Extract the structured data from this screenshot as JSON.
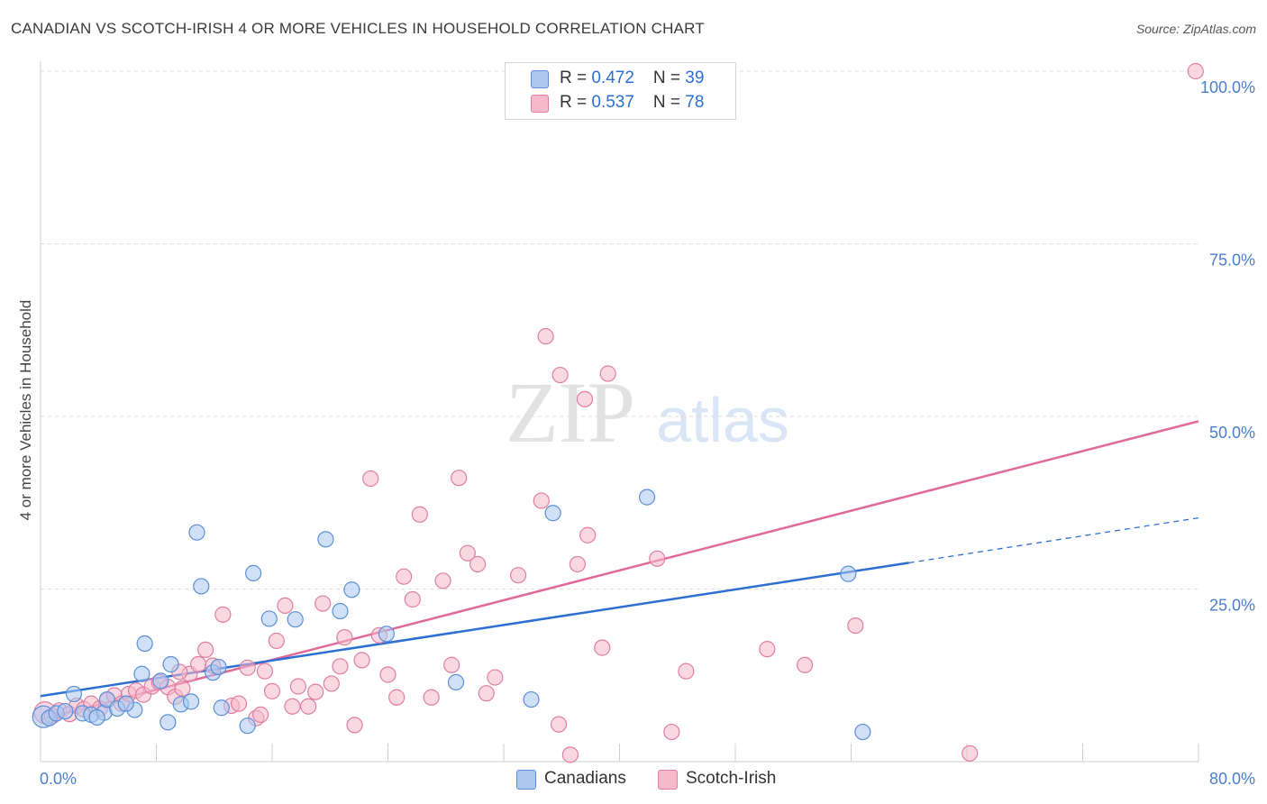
{
  "title": "CANADIAN VS SCOTCH-IRISH 4 OR MORE VEHICLES IN HOUSEHOLD CORRELATION CHART",
  "source": "Source: ZipAtlas.com",
  "watermark": {
    "zip": "ZIP",
    "atlas": "atlas"
  },
  "stats": [
    {
      "r_label": "R = ",
      "r_value": "0.472",
      "n_label": "N = ",
      "n_value": "39",
      "color": "#aac8f0"
    },
    {
      "r_label": "R = ",
      "r_value": "0.537",
      "n_label": "N = ",
      "n_value": "78",
      "color": "#f6b8cb"
    }
  ],
  "legend": [
    {
      "label": "Canadians",
      "color": "#aac8f0"
    },
    {
      "label": "Scotch-Irish",
      "color": "#f6b8cb"
    }
  ],
  "colors": {
    "canadians_fill": "#aac8f0",
    "canadians_stroke": "#5b8fd8",
    "canadians_line": "#2d6fd1",
    "scotch_fill": "#f6b8cb",
    "scotch_stroke": "#e07f9f",
    "scotch_line": "#e0699a",
    "axis_text": "#4a7fcf",
    "grid": "#dddddd"
  },
  "chart_data": {
    "type": "scatter",
    "title": "CANADIAN VS SCOTCH-IRISH 4 OR MORE VEHICLES IN HOUSEHOLD CORRELATION CHART",
    "xlabel": "",
    "ylabel": "4 or more Vehicles in Household",
    "xlim": [
      0,
      80
    ],
    "ylim": [
      0,
      100
    ],
    "x_tick_labels": [
      "0.0%",
      "80.0%"
    ],
    "y_tick_labels": [
      "25.0%",
      "50.0%",
      "75.0%",
      "100.0%"
    ],
    "y_ticks": [
      25,
      50,
      75,
      100
    ],
    "grid": "horizontal dashed",
    "legend_position": "bottom-center",
    "series": [
      {
        "name": "Canadians",
        "r": 0.472,
        "n": 39,
        "trend": {
          "x": [
            0,
            60
          ],
          "y": [
            9.5,
            28.8
          ],
          "dashed_to": [
            80,
            35.3
          ]
        },
        "points": [
          [
            0.2,
            6.5
          ],
          [
            0.6,
            6.3
          ],
          [
            1.1,
            7.0
          ],
          [
            1.7,
            7.3
          ],
          [
            2.3,
            9.8
          ],
          [
            2.9,
            7.0
          ],
          [
            3.5,
            6.8
          ],
          [
            4.4,
            7.1
          ],
          [
            4.6,
            9.0
          ],
          [
            5.3,
            7.7
          ],
          [
            6.5,
            7.5
          ],
          [
            5.9,
            8.4
          ],
          [
            7.0,
            12.7
          ],
          [
            7.2,
            17.1
          ],
          [
            8.3,
            11.7
          ],
          [
            8.8,
            5.7
          ],
          [
            9.0,
            14.1
          ],
          [
            9.7,
            8.3
          ],
          [
            10.4,
            8.7
          ],
          [
            10.8,
            33.2
          ],
          [
            11.1,
            25.4
          ],
          [
            11.9,
            12.9
          ],
          [
            12.3,
            13.7
          ],
          [
            14.3,
            5.2
          ],
          [
            14.7,
            27.3
          ],
          [
            15.8,
            20.7
          ],
          [
            17.6,
            20.6
          ],
          [
            19.7,
            32.2
          ],
          [
            20.7,
            21.8
          ],
          [
            21.5,
            24.9
          ],
          [
            23.9,
            18.5
          ],
          [
            28.7,
            11.5
          ],
          [
            33.9,
            9.0
          ],
          [
            35.4,
            36.0
          ],
          [
            41.9,
            38.3
          ],
          [
            55.8,
            27.2
          ],
          [
            56.8,
            4.3
          ],
          [
            3.9,
            6.4
          ],
          [
            12.5,
            7.8
          ]
        ]
      },
      {
        "name": "Scotch-Irish",
        "r": 0.537,
        "n": 78,
        "trend": {
          "x": [
            0,
            80
          ],
          "y": [
            6.1,
            49.3
          ]
        },
        "points": [
          [
            0.3,
            7.1
          ],
          [
            0.8,
            6.6
          ],
          [
            1.3,
            7.4
          ],
          [
            2.0,
            6.9
          ],
          [
            2.5,
            8.1
          ],
          [
            3.0,
            7.6
          ],
          [
            3.5,
            8.4
          ],
          [
            4.1,
            7.7
          ],
          [
            4.6,
            8.9
          ],
          [
            5.1,
            9.6
          ],
          [
            5.6,
            8.4
          ],
          [
            6.1,
            9.8
          ],
          [
            6.6,
            10.3
          ],
          [
            7.1,
            9.7
          ],
          [
            7.7,
            10.9
          ],
          [
            8.2,
            11.5
          ],
          [
            8.8,
            10.8
          ],
          [
            9.3,
            9.4
          ],
          [
            9.8,
            10.6
          ],
          [
            10.3,
            12.7
          ],
          [
            10.9,
            14.1
          ],
          [
            11.4,
            16.2
          ],
          [
            11.9,
            13.9
          ],
          [
            12.6,
            21.3
          ],
          [
            13.2,
            8.1
          ],
          [
            13.7,
            8.4
          ],
          [
            14.3,
            13.6
          ],
          [
            14.9,
            6.3
          ],
          [
            15.5,
            13.1
          ],
          [
            16.0,
            10.2
          ],
          [
            16.3,
            17.5
          ],
          [
            16.9,
            22.6
          ],
          [
            17.4,
            8.0
          ],
          [
            17.8,
            10.9
          ],
          [
            18.5,
            8.0
          ],
          [
            19.0,
            10.1
          ],
          [
            19.5,
            22.9
          ],
          [
            20.1,
            11.3
          ],
          [
            20.7,
            13.8
          ],
          [
            21.0,
            18.0
          ],
          [
            21.7,
            5.3
          ],
          [
            22.2,
            14.7
          ],
          [
            22.8,
            41.0
          ],
          [
            23.4,
            18.3
          ],
          [
            24.0,
            12.6
          ],
          [
            24.6,
            9.3
          ],
          [
            25.1,
            26.8
          ],
          [
            25.7,
            23.5
          ],
          [
            26.2,
            35.8
          ],
          [
            27.0,
            9.3
          ],
          [
            27.8,
            26.2
          ],
          [
            28.4,
            14.0
          ],
          [
            28.9,
            41.1
          ],
          [
            29.5,
            30.2
          ],
          [
            30.2,
            28.6
          ],
          [
            30.8,
            9.9
          ],
          [
            31.4,
            12.2
          ],
          [
            33.0,
            27.0
          ],
          [
            34.6,
            37.8
          ],
          [
            34.9,
            61.6
          ],
          [
            35.8,
            5.4
          ],
          [
            35.9,
            56.0
          ],
          [
            36.6,
            1.0
          ],
          [
            37.1,
            28.6
          ],
          [
            37.6,
            52.5
          ],
          [
            37.8,
            32.8
          ],
          [
            38.8,
            16.5
          ],
          [
            39.2,
            56.2
          ],
          [
            42.6,
            29.4
          ],
          [
            43.6,
            4.3
          ],
          [
            44.6,
            13.1
          ],
          [
            50.2,
            16.3
          ],
          [
            52.8,
            14.0
          ],
          [
            56.3,
            19.7
          ],
          [
            64.2,
            1.2
          ],
          [
            79.8,
            100.0
          ],
          [
            15.2,
            6.8
          ],
          [
            9.6,
            13.0
          ]
        ]
      }
    ]
  }
}
